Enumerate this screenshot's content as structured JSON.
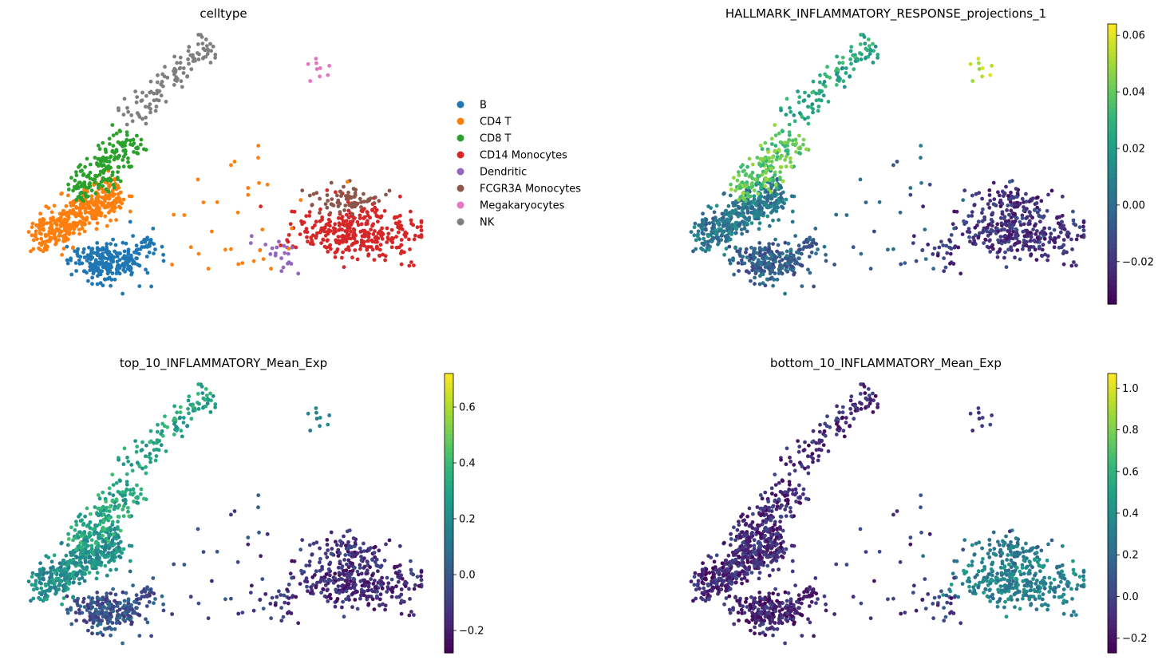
{
  "chart_data": [
    {
      "type": "scatter",
      "title": "celltype",
      "xlabel": "",
      "ylabel": "",
      "grid": false,
      "axes_visible": false,
      "legend_placement": "right, outside",
      "legend": [
        {
          "name": "B",
          "color": "#1f77b4"
        },
        {
          "name": "CD4 T",
          "color": "#ff7f0e"
        },
        {
          "name": "CD8 T",
          "color": "#2ca02c"
        },
        {
          "name": "CD14 Monocytes",
          "color": "#d62728"
        },
        {
          "name": "Dendritic",
          "color": "#9467bd"
        },
        {
          "name": "FCGR3A Monocytes",
          "color": "#8c564b"
        },
        {
          "name": "Megakaryocytes",
          "color": "#e377c2"
        },
        {
          "name": "NK",
          "color": "#7f7f7f"
        }
      ]
    },
    {
      "type": "scatter",
      "title": "HALLMARK_INFLAMMATORY_RESPONSE_projections_1",
      "grid": false,
      "axes_visible": false,
      "colormap": "viridis",
      "colorbar": {
        "min": -0.035,
        "max": 0.064,
        "ticks": [
          -0.02,
          0.0,
          0.02,
          0.04,
          0.06
        ],
        "tick_labels": [
          "−0.02",
          "0.00",
          "0.02",
          "0.04",
          "0.06"
        ]
      },
      "cluster_levels": {
        "B": 0.3,
        "CD4 T": 0.4,
        "CD8 T": 0.75,
        "NK": 0.6,
        "CD14 Monocytes": 0.15,
        "Dendritic": 0.15,
        "FCGR3A Monocytes": 0.13,
        "Megakaryocytes": 0.85,
        "Outliers": 0.3
      }
    },
    {
      "type": "scatter",
      "title": "top_10_INFLAMMATORY_Mean_Exp",
      "grid": false,
      "axes_visible": false,
      "colormap": "viridis",
      "colorbar": {
        "min": -0.28,
        "max": 0.72,
        "ticks": [
          -0.2,
          0.0,
          0.2,
          0.4,
          0.6
        ],
        "tick_labels": [
          "−0.2",
          "0.0",
          "0.2",
          "0.4",
          "0.6"
        ]
      },
      "cluster_levels": {
        "B": 0.25,
        "CD4 T": 0.5,
        "CD8 T": 0.6,
        "NK": 0.58,
        "CD14 Monocytes": 0.13,
        "Dendritic": 0.15,
        "FCGR3A Monocytes": 0.15,
        "Megakaryocytes": 0.4,
        "Outliers": 0.2
      }
    },
    {
      "type": "scatter",
      "title": "bottom_10_INFLAMMATORY_Mean_Exp",
      "grid": false,
      "axes_visible": false,
      "colormap": "viridis",
      "colorbar": {
        "min": -0.27,
        "max": 1.07,
        "ticks": [
          -0.2,
          0.0,
          0.2,
          0.4,
          0.6,
          0.8,
          1.0
        ],
        "tick_labels": [
          "−0.2",
          "0.0",
          "0.2",
          "0.4",
          "0.6",
          "0.8",
          "1.0"
        ]
      },
      "cluster_levels": {
        "B": 0.1,
        "CD4 T": 0.12,
        "CD8 T": 0.12,
        "NK": 0.12,
        "CD14 Monocytes": 0.45,
        "Dendritic": 0.2,
        "FCGR3A Monocytes": 0.4,
        "Megakaryocytes": 0.12,
        "Outliers": 0.15
      }
    }
  ]
}
